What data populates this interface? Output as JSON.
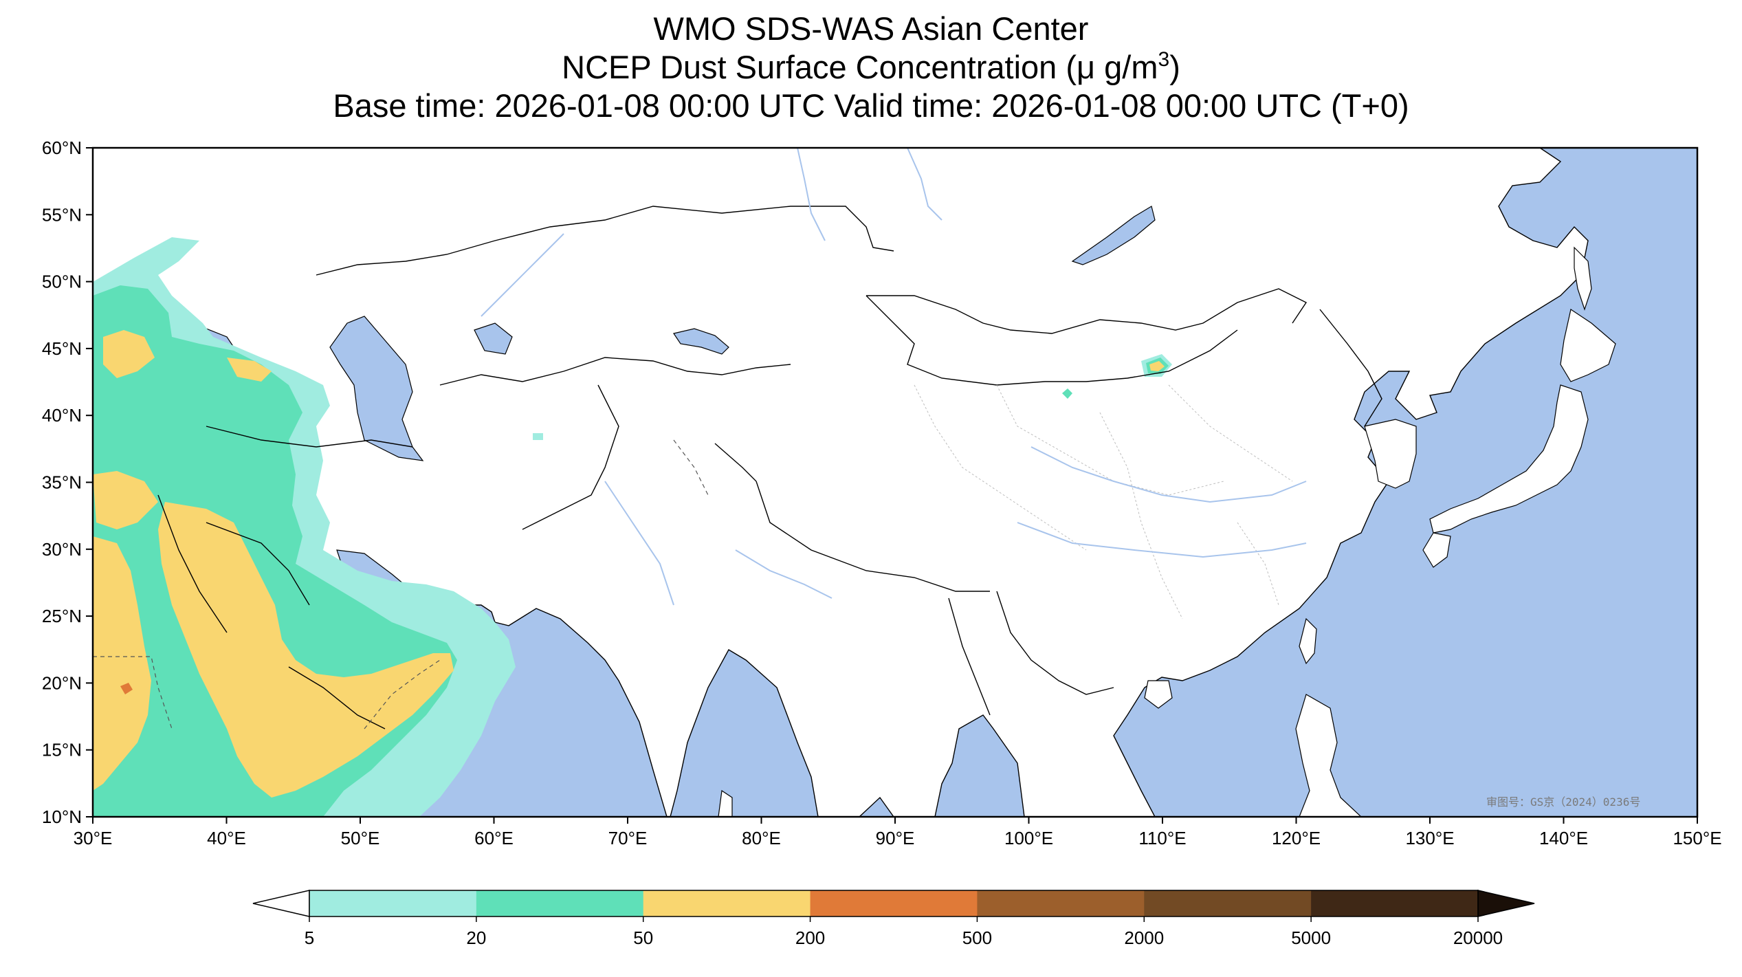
{
  "titles": {
    "line1": "WMO SDS-WAS Asian Center",
    "line2_prefix": "NCEP Dust Surface Concentration (μ g/m",
    "line2_sup": "3",
    "line2_suffix": ")",
    "line3": "Base time: 2026-01-08 00:00 UTC Valid time: 2026-01-08 00:00 UTC (T+0)"
  },
  "map": {
    "lon_range": [
      30,
      150
    ],
    "lat_range": [
      10,
      60
    ],
    "lat_ticks": [
      {
        "value": 60,
        "label": "60°N"
      },
      {
        "value": 55,
        "label": "55°N"
      },
      {
        "value": 50,
        "label": "50°N"
      },
      {
        "value": 45,
        "label": "45°N"
      },
      {
        "value": 40,
        "label": "40°N"
      },
      {
        "value": 35,
        "label": "35°N"
      },
      {
        "value": 30,
        "label": "30°N"
      },
      {
        "value": 25,
        "label": "25°N"
      },
      {
        "value": 20,
        "label": "20°N"
      },
      {
        "value": 15,
        "label": "15°N"
      },
      {
        "value": 10,
        "label": "10°N"
      }
    ],
    "lon_ticks": [
      {
        "value": 30,
        "label": "30°E"
      },
      {
        "value": 40,
        "label": "40°E"
      },
      {
        "value": 50,
        "label": "50°E"
      },
      {
        "value": 60,
        "label": "60°E"
      },
      {
        "value": 70,
        "label": "70°E"
      },
      {
        "value": 80,
        "label": "80°E"
      },
      {
        "value": 90,
        "label": "90°E"
      },
      {
        "value": 100,
        "label": "100°E"
      },
      {
        "value": 110,
        "label": "110°E"
      },
      {
        "value": 120,
        "label": "120°E"
      },
      {
        "value": 130,
        "label": "130°E"
      },
      {
        "value": 140,
        "label": "140°E"
      },
      {
        "value": 150,
        "label": "150°E"
      }
    ],
    "ocean_color": "#a8c4ec",
    "land_color": "#ffffff",
    "approval_stamp": "审图号：GS京（2024）0236号"
  },
  "colorbar": {
    "levels": [
      {
        "label": "5",
        "color": "#a0ece0"
      },
      {
        "label": "20",
        "color": "#5fe0b8"
      },
      {
        "label": "50",
        "color": "#f9d670"
      },
      {
        "label": "200",
        "color": "#e07a38"
      },
      {
        "label": "500",
        "color": "#9c5f2c"
      },
      {
        "label": "2000",
        "color": "#724a24"
      },
      {
        "label": "5000",
        "color": "#3f2816"
      },
      {
        "label": "20000",
        "color": "#1a0f08"
      }
    ],
    "extend_min_color": "#ffffff",
    "extend_max_color": "#1a0f08"
  }
}
